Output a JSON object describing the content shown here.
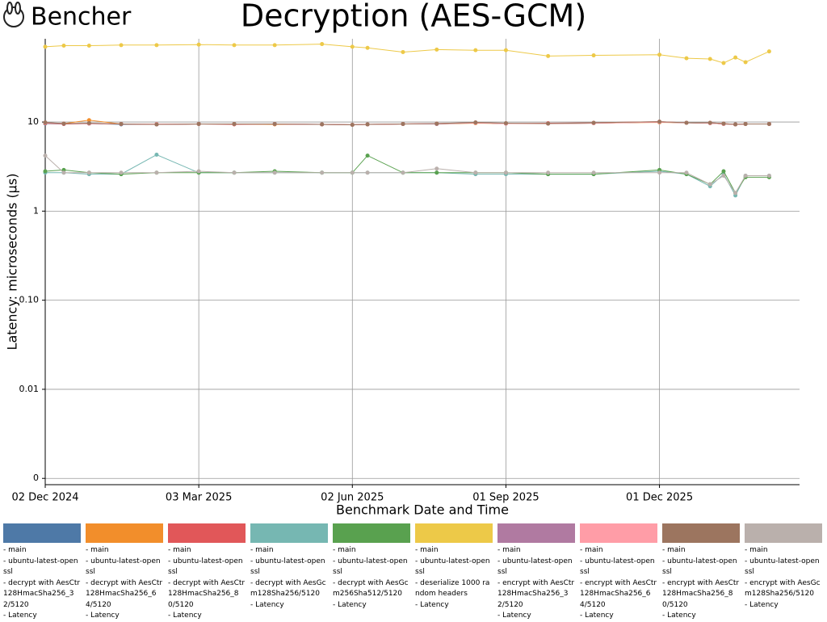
{
  "brand": "Bencher",
  "chart_data": {
    "type": "line",
    "title": "Decryption (AES-GCM)",
    "x_label": "Benchmark Date and Time",
    "y_label": "Latency: microseconds (µs)",
    "log_scale": true,
    "grid": true,
    "xlim": [
      "2024-12-02",
      "2026-02-22"
    ],
    "xticks": [
      {
        "value": "2024-12-02",
        "label": "02 Dec 2024"
      },
      {
        "value": "2025-03-03",
        "label": "03 Mar 2025"
      },
      {
        "value": "2025-06-02",
        "label": "02 Jun 2025"
      },
      {
        "value": "2025-09-01",
        "label": "01 Sep 2025"
      },
      {
        "value": "2025-12-01",
        "label": "01 Dec 2025"
      }
    ],
    "ylim": [
      0.00085,
      86
    ],
    "yticks": [
      {
        "value": 0.001,
        "label": "0"
      },
      0.01,
      {
        "value": 0.1,
        "label": "0.10"
      },
      1,
      10
    ],
    "x": [
      "2024-12-02",
      "2024-12-13",
      "2024-12-28",
      "2025-01-16",
      "2025-02-06",
      "2025-03-03",
      "2025-03-24",
      "2025-04-17",
      "2025-05-15",
      "2025-06-02",
      "2025-06-11",
      "2025-07-02",
      "2025-07-22",
      "2025-08-14",
      "2025-09-01",
      "2025-09-26",
      "2025-10-23",
      "2025-12-01",
      "2025-12-17",
      "2025-12-31",
      "2026-01-08",
      "2026-01-15",
      "2026-01-21",
      "2026-02-04"
    ],
    "series": [
      {
        "name": "- main\n- ubuntu-latest-openssl\n- decrypt with AesCtr128HmacSha256_32/5120\n- Latency",
        "color": "#4e79a7",
        "values": [
          9.6,
          9.5,
          9.6,
          9.4,
          9.4,
          9.5,
          9.5,
          9.5,
          9.4,
          9.3,
          9.4,
          9.5,
          9.5,
          9.8,
          9.6,
          9.6,
          9.7,
          10.0,
          9.8,
          9.7,
          9.5,
          9.4,
          9.5,
          9.5
        ]
      },
      {
        "name": "- main\n- ubuntu-latest-openssl\n- decrypt with AesCtr128HmacSha256_64/5120\n- Latency",
        "color": "#f28e2b",
        "values": [
          9.7,
          9.6,
          10.5,
          9.5,
          9.4,
          9.5,
          9.5,
          9.4,
          9.4,
          9.3,
          9.4,
          9.5,
          9.5,
          9.7,
          9.6,
          9.6,
          9.7,
          9.9,
          9.8,
          9.7,
          9.5,
          9.4,
          9.5,
          9.5
        ]
      },
      {
        "name": "- main\n- ubuntu-latest-openssl\n- decrypt with AesCtr128HmacSha256_80/5120\n- Latency",
        "color": "#e15759",
        "values": [
          9.7,
          9.5,
          9.6,
          9.5,
          9.4,
          9.5,
          9.4,
          9.5,
          9.4,
          9.3,
          9.4,
          9.5,
          9.6,
          9.8,
          9.6,
          9.7,
          9.8,
          10.1,
          9.8,
          9.8,
          9.6,
          9.4,
          9.5,
          9.5
        ]
      },
      {
        "name": "- main\n- ubuntu-latest-openssl\n- decrypt with AesGcm128Sha256/5120\n- Latency",
        "color": "#76b7b2",
        "values": [
          2.7,
          2.7,
          2.6,
          2.6,
          4.3,
          2.7,
          2.7,
          2.7,
          2.7,
          2.7,
          2.7,
          2.7,
          2.7,
          2.6,
          2.6,
          2.6,
          2.6,
          2.8,
          2.6,
          1.9,
          2.6,
          1.5,
          2.5,
          2.5
        ]
      },
      {
        "name": "- main\n- ubuntu-latest-openssl\n- decrypt with AesGcm256Sha512/5120\n- Latency",
        "color": "#59a14f",
        "values": [
          2.8,
          2.9,
          2.7,
          2.6,
          2.7,
          2.7,
          2.7,
          2.8,
          2.7,
          2.7,
          4.2,
          2.7,
          2.7,
          2.7,
          2.7,
          2.6,
          2.6,
          2.9,
          2.6,
          2.0,
          2.8,
          1.6,
          2.4,
          2.4
        ]
      },
      {
        "name": "- main\n- ubuntu-latest-openssl\n- deserialize 1000 random headers\n- Latency",
        "color": "#edc948",
        "values": [
          70,
          72,
          72,
          73,
          73,
          74,
          73,
          73,
          75,
          70,
          68,
          61,
          65,
          64,
          64,
          55,
          56,
          57,
          52,
          51,
          46,
          53,
          47,
          62
        ]
      },
      {
        "name": "- main\n- ubuntu-latest-openssl\n- encrypt with AesCtr128HmacSha256_32/5120\n- Latency",
        "color": "#b07aa1",
        "values": [
          9.8,
          9.6,
          9.6,
          9.5,
          9.4,
          9.5,
          9.5,
          9.5,
          9.4,
          9.3,
          9.4,
          9.5,
          9.5,
          9.8,
          9.6,
          9.6,
          9.7,
          10.0,
          9.8,
          9.7,
          9.5,
          9.4,
          9.5,
          9.5
        ]
      },
      {
        "name": "- main\n- ubuntu-latest-openssl\n- encrypt with AesCtr128HmacSha256_64/5120\n- Latency",
        "color": "#ff9da7",
        "values": [
          9.8,
          9.6,
          9.6,
          9.5,
          9.5,
          9.5,
          9.5,
          9.5,
          9.4,
          9.3,
          9.4,
          9.5,
          9.6,
          9.8,
          9.6,
          9.6,
          9.7,
          10.0,
          9.8,
          9.7,
          9.5,
          9.4,
          9.5,
          9.5
        ]
      },
      {
        "name": "- main\n- ubuntu-latest-openssl\n- encrypt with AesCtr128HmacSha256_80/5120\n- Latency",
        "color": "#9c755f",
        "values": [
          9.9,
          9.6,
          9.7,
          9.5,
          9.4,
          9.5,
          9.5,
          9.5,
          9.4,
          9.3,
          9.4,
          9.5,
          9.6,
          9.9,
          9.7,
          9.6,
          9.8,
          10.1,
          9.8,
          9.8,
          9.6,
          9.4,
          9.5,
          9.5
        ]
      },
      {
        "name": "- main\n- ubuntu-latest-openssl\n- encrypt with AesGcm128Sha256/5120\n- Latency",
        "color": "#bab0ac",
        "values": [
          4.2,
          2.7,
          2.7,
          2.7,
          2.7,
          2.8,
          2.7,
          2.7,
          2.7,
          2.7,
          2.7,
          2.7,
          3.0,
          2.7,
          2.7,
          2.7,
          2.7,
          2.7,
          2.7,
          2.0,
          2.5,
          1.6,
          2.5,
          2.5
        ]
      }
    ]
  }
}
